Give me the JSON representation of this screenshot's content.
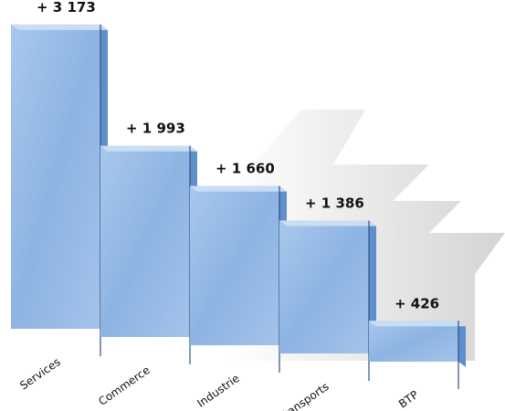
{
  "chart_data": {
    "type": "bar3d",
    "categories": [
      "Services",
      "Commerce",
      "Industrie",
      "Transports",
      "BTP"
    ],
    "values": [
      3173,
      1993,
      1660,
      1386,
      426
    ],
    "value_labels": [
      "+ 3 173",
      "+ 1 993",
      "+ 1 660",
      "+ 1 386",
      "+ 426"
    ],
    "color": "#8db4e2"
  }
}
